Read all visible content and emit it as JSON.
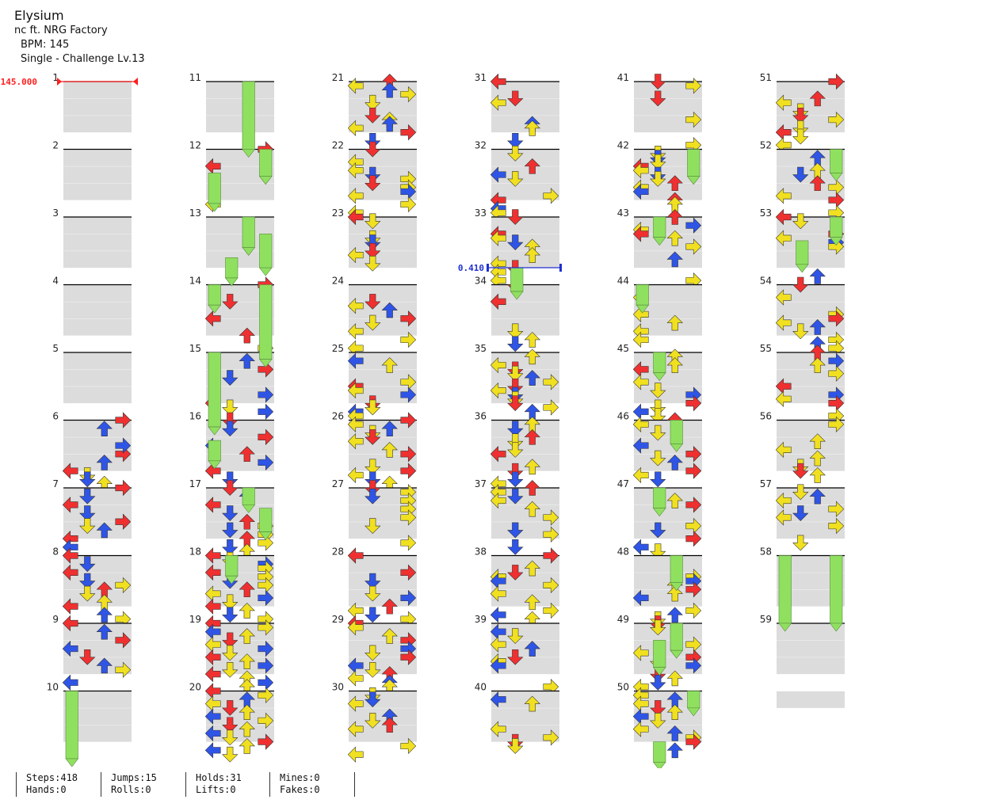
{
  "song": {
    "title": "Elysium",
    "artist": "nc ft. NRG Factory",
    "bpm_text": "BPM: 145",
    "difficulty_text": "Single - Challenge Lv.13"
  },
  "markers": {
    "bpm_change": {
      "label": "145.000",
      "measure": 1,
      "color": "#ff2020"
    },
    "stop": {
      "label": "0.410",
      "measure": 34,
      "color": "#2030d0"
    }
  },
  "colors": {
    "red_note": "#f03030",
    "blue_note": "#2f55e6",
    "yellow_note": "#f0e020",
    "hold_body": "#90e060",
    "gray_band": "#dcdcdc",
    "measure_line": "#000000"
  },
  "columns": [
    {
      "first_measure": 1,
      "last_measure": 10
    },
    {
      "first_measure": 11,
      "last_measure": 20
    },
    {
      "first_measure": 21,
      "last_measure": 30
    },
    {
      "first_measure": 31,
      "last_measure": 40
    },
    {
      "first_measure": 41,
      "last_measure": 50
    },
    {
      "first_measure": 51,
      "last_measure": 59
    }
  ],
  "chart_data": {
    "type": "table",
    "lanes": [
      "left",
      "down",
      "up",
      "right"
    ],
    "measures_total": 59,
    "notes": {
      "6": [
        [
          0,
          "R"
        ],
        [
          8,
          "R"
        ],
        [
          2,
          "U"
        ],
        [
          6,
          "R"
        ],
        [
          12,
          "L"
        ],
        [
          13,
          "D"
        ],
        [
          10,
          "U"
        ],
        [
          14,
          "D"
        ],
        [
          15,
          "U"
        ]
      ],
      "7": [
        [
          0,
          "R"
        ],
        [
          4,
          "L"
        ],
        [
          2,
          "D"
        ],
        [
          6,
          "D"
        ],
        [
          8,
          "R"
        ],
        [
          10,
          "U"
        ],
        [
          9,
          "D"
        ],
        [
          12,
          "L"
        ],
        [
          14,
          "L"
        ]
      ],
      "8": [
        [
          0,
          "L"
        ],
        [
          2,
          "D"
        ],
        [
          4,
          "L"
        ],
        [
          6,
          "D"
        ],
        [
          8,
          "U"
        ],
        [
          7,
          "R"
        ],
        [
          9,
          "D"
        ],
        [
          12,
          "L"
        ],
        [
          11,
          "U"
        ],
        [
          14,
          "U"
        ],
        [
          15,
          "R"
        ]
      ],
      "9": [
        [
          0,
          "L"
        ],
        [
          2,
          "U"
        ],
        [
          4,
          "R"
        ],
        [
          6,
          "L"
        ],
        [
          8,
          "D"
        ],
        [
          10,
          "U"
        ],
        [
          11,
          "R"
        ],
        [
          14,
          "L"
        ]
      ],
      "12": [
        [
          0,
          "R"
        ],
        [
          4,
          "L"
        ],
        [
          13,
          "L"
        ]
      ],
      "14": [
        [
          0,
          "R"
        ],
        [
          4,
          "D"
        ],
        [
          8,
          "L"
        ],
        [
          12,
          "U"
        ],
        [
          15,
          "R"
        ]
      ],
      "15": [
        [
          2,
          "U"
        ],
        [
          4,
          "R"
        ],
        [
          6,
          "D"
        ],
        [
          10,
          "R"
        ],
        [
          12,
          "L"
        ],
        [
          13,
          "D"
        ],
        [
          14,
          "R"
        ]
      ],
      "16": [
        [
          0,
          "D"
        ],
        [
          2,
          "D"
        ],
        [
          4,
          "R"
        ],
        [
          6,
          "L"
        ],
        [
          8,
          "U"
        ],
        [
          10,
          "R"
        ],
        [
          12,
          "L"
        ],
        [
          14,
          "D"
        ]
      ],
      "17": [
        [
          0,
          "D"
        ],
        [
          2,
          "U"
        ],
        [
          4,
          "L"
        ],
        [
          6,
          "D"
        ],
        [
          8,
          "U"
        ],
        [
          9,
          "R"
        ],
        [
          10,
          "D"
        ],
        [
          11,
          "R"
        ],
        [
          12,
          "U"
        ],
        [
          13,
          "R"
        ],
        [
          14,
          "D"
        ],
        [
          15,
          "U"
        ]
      ],
      "18": [
        [
          0,
          "L"
        ],
        [
          1,
          "D"
        ],
        [
          2,
          "R"
        ],
        [
          3,
          "R"
        ],
        [
          4,
          "L"
        ],
        [
          5,
          "R"
        ],
        [
          6,
          "D"
        ],
        [
          7,
          "R"
        ],
        [
          8,
          "U"
        ],
        [
          9,
          "L"
        ],
        [
          10,
          "R"
        ],
        [
          11,
          "D"
        ],
        [
          12,
          "L"
        ],
        [
          13,
          "U"
        ],
        [
          14,
          "D"
        ],
        [
          15,
          "R"
        ]
      ],
      "19": [
        [
          0,
          "L"
        ],
        [
          1,
          "R"
        ],
        [
          2,
          "L"
        ],
        [
          3,
          "U"
        ],
        [
          4,
          "D"
        ],
        [
          5,
          "L"
        ],
        [
          6,
          "R"
        ],
        [
          7,
          "D"
        ],
        [
          8,
          "L"
        ],
        [
          9,
          "U"
        ],
        [
          10,
          "R"
        ],
        [
          11,
          "D"
        ],
        [
          12,
          "L"
        ],
        [
          13,
          "U"
        ],
        [
          14,
          "R"
        ],
        [
          15,
          "U"
        ]
      ],
      "20": [
        [
          0,
          "L"
        ],
        [
          1,
          "R"
        ],
        [
          2,
          "U"
        ],
        [
          3,
          "L"
        ],
        [
          4,
          "D"
        ],
        [
          5,
          "U"
        ],
        [
          6,
          "L"
        ],
        [
          7,
          "R"
        ],
        [
          8,
          "D"
        ],
        [
          9,
          "U"
        ],
        [
          10,
          "L"
        ],
        [
          11,
          "D"
        ],
        [
          12,
          "R"
        ],
        [
          13,
          "U"
        ],
        [
          14,
          "L"
        ],
        [
          15,
          "D"
        ]
      ]
    },
    "holds_in_view": 31
  },
  "stats": {
    "steps": "Steps:418",
    "jumps": "Jumps:15",
    "holds": "Holds:31",
    "mines": "Mines:0",
    "hands": "Hands:0",
    "rolls": "Rolls:0",
    "lifts": "Lifts:0",
    "fakes": "Fakes:0"
  }
}
